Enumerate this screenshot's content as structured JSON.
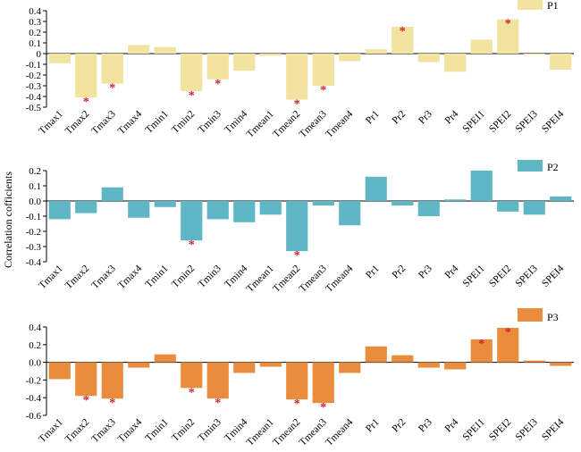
{
  "chart_data": [
    {
      "type": "bar",
      "legend": "P1",
      "color": "#f2e3a0",
      "categories": [
        "Tmax1",
        "Tmax2",
        "Tmax3",
        "Tmax4",
        "Tmin1",
        "Tmin2",
        "Tmin3",
        "Tmin4",
        "Tmean1",
        "Tmean2",
        "Tmean3",
        "Tmean4",
        "Pr1",
        "Pr2",
        "Pr3",
        "Pr4",
        "SPEI1",
        "SPEI2",
        "SPEI3",
        "SPEI4"
      ],
      "values": [
        -0.09,
        -0.41,
        -0.28,
        0.08,
        0.06,
        -0.35,
        -0.24,
        -0.16,
        -0.02,
        -0.43,
        -0.3,
        -0.07,
        0.04,
        0.25,
        -0.08,
        -0.17,
        0.13,
        0.32,
        -0.01,
        -0.15
      ],
      "significant": [
        false,
        true,
        true,
        false,
        false,
        true,
        true,
        false,
        false,
        true,
        true,
        false,
        false,
        true,
        false,
        false,
        false,
        true,
        false,
        false
      ],
      "ylim": [
        -0.5,
        0.4
      ],
      "yticks": [
        "0.4",
        "0.3",
        "0.2",
        "0.1",
        "0",
        "-0.1",
        "-0.2",
        "-0.3",
        "-0.4",
        "-0.5"
      ]
    },
    {
      "type": "bar",
      "legend": "P2",
      "color": "#5fb7c6",
      "categories": [
        "Tmax1",
        "Tmax2",
        "Tmax3",
        "Tmax4",
        "Tmin1",
        "Tmin2",
        "Tmin3",
        "Tmin4",
        "Tmean1",
        "Tmean2",
        "Tmean3",
        "Tmean4",
        "Pr1",
        "Pr2",
        "Pr3",
        "Pr4",
        "SPEI1",
        "SPEI2",
        "SPEI3",
        "SPEI4"
      ],
      "values": [
        -0.12,
        -0.08,
        0.09,
        -0.11,
        -0.04,
        -0.26,
        -0.12,
        -0.14,
        -0.09,
        -0.33,
        -0.03,
        -0.16,
        0.16,
        -0.03,
        -0.1,
        0.01,
        0.2,
        -0.07,
        -0.09,
        0.03
      ],
      "significant": [
        false,
        false,
        false,
        false,
        false,
        true,
        false,
        false,
        false,
        true,
        false,
        false,
        false,
        false,
        false,
        false,
        false,
        false,
        false,
        false
      ],
      "ylim": [
        -0.4,
        0.2
      ],
      "yticks": [
        "0.2",
        "0.1",
        "0.0",
        "-0.1",
        "-0.2",
        "-0.3",
        "-0.4"
      ]
    },
    {
      "type": "bar",
      "legend": "P3",
      "color": "#ea8c3e",
      "categories": [
        "Tmax1",
        "Tmax2",
        "Tmax3",
        "Tmax4",
        "Tmin1",
        "Tmin2",
        "Tmin3",
        "Tmin4",
        "Tmean1",
        "Tmean2",
        "Tmean3",
        "Tmean4",
        "Pr1",
        "Pr2",
        "Pr3",
        "Pr4",
        "SPEI1",
        "SPEI2",
        "SPEI3",
        "SPEI4"
      ],
      "values": [
        -0.19,
        -0.38,
        -0.41,
        -0.06,
        0.09,
        -0.29,
        -0.41,
        -0.12,
        -0.05,
        -0.42,
        -0.46,
        -0.12,
        0.18,
        0.08,
        -0.06,
        -0.08,
        0.26,
        0.39,
        0.02,
        -0.04
      ],
      "significant": [
        false,
        true,
        true,
        false,
        false,
        true,
        true,
        false,
        false,
        true,
        true,
        false,
        false,
        false,
        false,
        false,
        true,
        true,
        false,
        false
      ],
      "ylim": [
        -0.6,
        0.4
      ],
      "yticks": [
        "0.4",
        "0.2",
        "0.0",
        "-0.2",
        "-0.4",
        "-0.6"
      ]
    }
  ],
  "ylabel": "Correlation cofficients",
  "significance_marker": "*",
  "marker_color": "#d0202a"
}
